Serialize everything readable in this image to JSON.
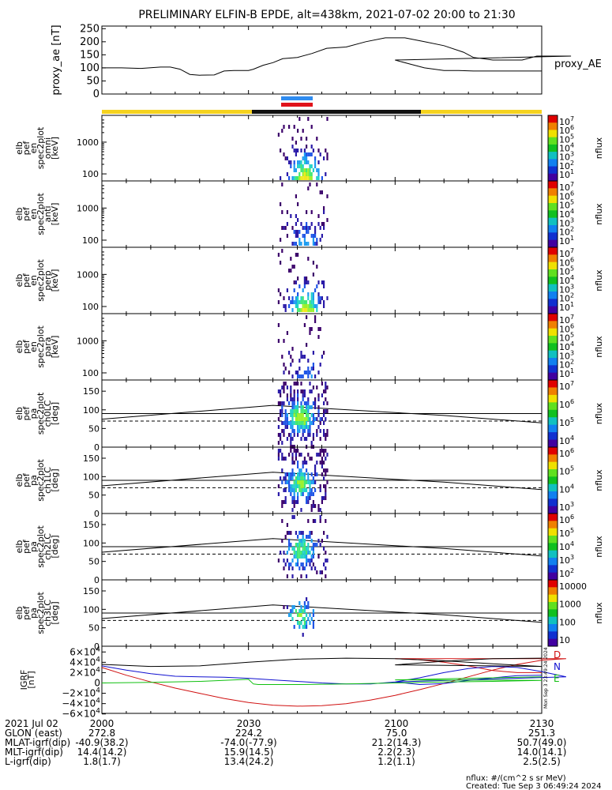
{
  "title": "PRELIMINARY ELFIN-B EPDE, alt=438km, 2021-07-02 20:00 to 21:30",
  "colors": {
    "sun": "#f5d21e",
    "shadow": "#101010",
    "science_blue": "#2f8cf0",
    "science_red": "#e0131b",
    "D": "#d01010",
    "N": "#1010d0",
    "E": "#10c010"
  },
  "chart_data": [
    {
      "type": "line",
      "panel": "proxy_ae",
      "ylabel": "proxy_ae [nT]",
      "legend": "proxy_AE",
      "ylim": [
        0,
        260
      ],
      "yticks": [
        "250",
        "200",
        "150",
        "100",
        "50",
        "0"
      ],
      "x": [
        2000,
        2004,
        2008,
        2012,
        2014,
        2016,
        2018,
        2020,
        2023,
        2025,
        2027,
        2030,
        2031,
        2033,
        2035,
        2037,
        2040,
        2043,
        2046,
        2050,
        2054,
        2058,
        2062,
        2066,
        2070,
        2074,
        2076,
        2080,
        2083,
        2086,
        2089,
        2092,
        2096,
        2100,
        2103,
        2106,
        2110,
        2113,
        2116,
        2119,
        2122,
        2125,
        2128,
        2130
      ],
      "y": [
        100,
        100,
        98,
        103,
        103,
        95,
        75,
        72,
        73,
        88,
        90,
        90,
        95,
        110,
        120,
        135,
        140,
        155,
        175,
        180,
        200,
        215,
        215,
        200,
        185,
        160,
        140,
        130,
        130,
        130,
        145,
        145,
        145,
        130,
        115,
        100,
        90,
        90,
        88,
        88,
        88,
        88,
        88,
        88
      ]
    },
    {
      "type": "heatmap",
      "panel": "en_spec_omni",
      "ylabel": [
        "elb",
        "pef",
        "en",
        "spec2plot",
        "omni",
        "[keV]"
      ],
      "yticks": [
        "1000",
        "100"
      ],
      "log_y": true,
      "colorbar": {
        "label": "nflux",
        "ticks": [
          "10^7",
          "10^6",
          "10^5",
          "10^4",
          "10^3",
          "10^2",
          "10^1"
        ]
      }
    },
    {
      "type": "heatmap",
      "panel": "en_spec_anti",
      "ylabel": [
        "elb",
        "pef",
        "en",
        "spec2plot",
        "anti",
        "[keV]"
      ],
      "yticks": [
        "1000",
        "100"
      ],
      "log_y": true,
      "colorbar": {
        "label": "nflux",
        "ticks": [
          "10^7",
          "10^6",
          "10^5",
          "10^4",
          "10^3",
          "10^2",
          "10^1"
        ]
      }
    },
    {
      "type": "heatmap",
      "panel": "en_spec_perp",
      "ylabel": [
        "elb",
        "pef",
        "en",
        "spec2plot",
        "perp",
        "[keV]"
      ],
      "yticks": [
        "1000",
        "100"
      ],
      "log_y": true,
      "colorbar": {
        "label": "nflux",
        "ticks": [
          "10^7",
          "10^6",
          "10^5",
          "10^4",
          "10^3",
          "10^2",
          "10^1"
        ]
      }
    },
    {
      "type": "heatmap",
      "panel": "en_spec_para",
      "ylabel": [
        "elb",
        "pef",
        "en",
        "spec2plot",
        "para",
        "[keV]"
      ],
      "yticks": [
        "1000",
        "100"
      ],
      "log_y": true,
      "colorbar": {
        "label": "nflux",
        "ticks": [
          "10^7",
          "10^6",
          "10^5",
          "10^4",
          "10^3",
          "10^2",
          "10^1"
        ]
      }
    },
    {
      "type": "heatmap",
      "panel": "pa_ch0LC",
      "ylabel": [
        "elb",
        "pef",
        "pa",
        "spec2plot",
        "ch0LC",
        "[deg]"
      ],
      "ylim": [
        0,
        180
      ],
      "yticks": [
        "150",
        "100",
        "50",
        "0"
      ],
      "colorbar": {
        "label": "nflux",
        "ticks": [
          "10^7",
          "10^6",
          "10^5",
          "10^4"
        ]
      }
    },
    {
      "type": "heatmap",
      "panel": "pa_ch1LC",
      "ylabel": [
        "elb",
        "pef",
        "pa",
        "spec2plot",
        "ch1LC",
        "[deg]"
      ],
      "ylim": [
        0,
        180
      ],
      "yticks": [
        "150",
        "100",
        "50",
        "0"
      ],
      "colorbar": {
        "label": "nflux",
        "ticks": [
          "10^6",
          "10^5",
          "10^4",
          "10^3"
        ]
      }
    },
    {
      "type": "heatmap",
      "panel": "pa_ch2LC",
      "ylabel": [
        "elb",
        "pef",
        "pa",
        "spec2plot",
        "ch2LC",
        "[deg]"
      ],
      "ylim": [
        0,
        180
      ],
      "yticks": [
        "150",
        "100",
        "50",
        "0"
      ],
      "colorbar": {
        "label": "nflux",
        "ticks": [
          "10^6",
          "10^5",
          "10^4",
          "10^3",
          "10^2"
        ]
      }
    },
    {
      "type": "heatmap",
      "panel": "pa_ch3LC",
      "ylabel": [
        "elb",
        "pef",
        "pa",
        "spec2plot",
        "ch3LC",
        "[deg]"
      ],
      "ylim": [
        0,
        180
      ],
      "yticks": [
        "150",
        "100",
        "50",
        "0"
      ],
      "colorbar": {
        "label": "nflux",
        "ticks": [
          "10000",
          "1000",
          "100",
          "10"
        ]
      }
    },
    {
      "type": "line",
      "panel": "bgrf",
      "ylabel": [
        "IGRF",
        "[nT]"
      ],
      "ylim": [
        -65000,
        65000
      ],
      "yticks": [
        "6×10^4",
        "4×10^4",
        "2×10^4",
        "0",
        "−2×10^4",
        "−4×10^4",
        "−6×10^4"
      ],
      "legend": [
        "D",
        "N",
        "E"
      ],
      "series": [
        {
          "name": "D",
          "x": [
            2000,
            2005,
            2010,
            2015,
            2020,
            2025,
            2030,
            2035,
            2040,
            2045,
            2050,
            2055,
            2060,
            2065,
            2070,
            2075,
            2080,
            2085,
            2090,
            2095,
            2100,
            2105,
            2110,
            2115,
            2120,
            2125,
            2130
          ],
          "y": [
            30000,
            15000,
            2000,
            -10000,
            -20000,
            -30000,
            -38000,
            -43000,
            -45000,
            -44000,
            -40000,
            -33000,
            -24000,
            -13000,
            -1000,
            12000,
            25000,
            36000,
            44000,
            47000,
            47000,
            45000,
            40000,
            33000,
            24000,
            20000,
            20000
          ]
        },
        {
          "name": "N",
          "x": [
            2000,
            2005,
            2010,
            2015,
            2020,
            2025,
            2030,
            2035,
            2040,
            2045,
            2050,
            2055,
            2060,
            2065,
            2070,
            2075,
            2080,
            2085,
            2090,
            2095,
            2100,
            2105,
            2110,
            2115,
            2120,
            2125,
            2130
          ],
          "y": [
            33000,
            25000,
            18000,
            13000,
            12000,
            11000,
            9000,
            6000,
            3000,
            0,
            -2000,
            -2000,
            2000,
            10000,
            20000,
            28000,
            32000,
            30000,
            22000,
            12000,
            2000,
            -3000,
            -1000,
            5000,
            10000,
            14000,
            15000
          ]
        },
        {
          "name": "E",
          "x": [
            2000,
            2010,
            2020,
            2030,
            2031,
            2032,
            2040,
            2050,
            2060,
            2070,
            2080,
            2090,
            2100,
            2110,
            2120,
            2130
          ],
          "y": [
            0,
            1000,
            3000,
            7000,
            -2000,
            -3000,
            -3000,
            -2000,
            0,
            2000,
            3000,
            5000,
            6000,
            8000,
            10000,
            12000
          ]
        },
        {
          "name": "",
          "x": [
            2000,
            2010,
            2020,
            2030,
            2040,
            2050,
            2060,
            2070,
            2080,
            2090,
            2100,
            2110,
            2120,
            2130
          ],
          "y": [
            36000,
            32000,
            33000,
            40000,
            46000,
            48000,
            47000,
            43000,
            37000,
            32000,
            35000,
            42000,
            47000,
            48000
          ]
        }
      ]
    }
  ],
  "pa_reference_lines": {
    "solid_deg": 90,
    "dashed_deg": 70,
    "curve_x": [
      2000,
      2035,
      2070,
      2130
    ],
    "curve_y": [
      75,
      112,
      85,
      65
    ]
  },
  "axis_text": {
    "row_labels": [
      "2021 Jul 02",
      "GLON (east)",
      "MLAT-igrf(dip)",
      "MLT-igrf(dip)",
      "L-igrf(dip)"
    ],
    "columns": [
      {
        "values": [
          "2000",
          "272.8",
          "-40.9(38.2)",
          "14.4(14.2)",
          "1.8(1.7)"
        ]
      },
      {
        "values": [
          "2030",
          "224.2",
          "-74.0(-77.9)",
          "15.9(14.5)",
          "13.4(24.2)"
        ]
      },
      {
        "values": [
          "2100",
          "75.0",
          "21.2(14.3)",
          "2.2(2.3)",
          "1.2(1.1)"
        ]
      },
      {
        "values": [
          "2130",
          "251.3",
          "50.7(49.0)",
          "14.0(14.1)",
          "2.5(2.5)"
        ]
      }
    ]
  },
  "footer": {
    "units": "nflux: #/(cm^2 s sr MeV)",
    "created": "Created: Tue Sep  3 06:49:24 2024"
  },
  "side_stamp": "Mon Sep  3 23:49:24 2024"
}
